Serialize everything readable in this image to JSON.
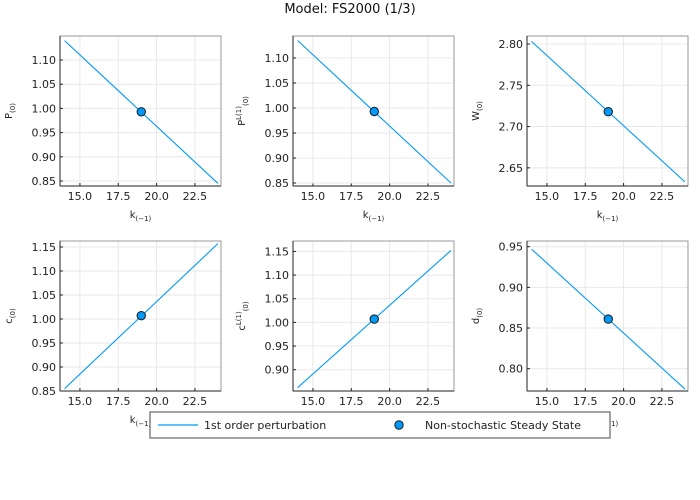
{
  "title": "Model: FS2000  (1/3)",
  "colors": {
    "line": "#009AFA",
    "point_fill": "#009AFA",
    "point_stroke": "#1a1a1a"
  },
  "legend": {
    "placement": "bottom",
    "entries": [
      "1st order perturbation",
      "Non-stochastic Steady State"
    ]
  },
  "chart_data": [
    {
      "type": "line",
      "ylabel": "P₍₀₎",
      "ylabel_html": "P<tspan font-size='7' dy='3'>(0)</tspan>",
      "xlabel": "k₍₋₁₎",
      "xlim": [
        13.7,
        24.2
      ],
      "xticks": [
        15.0,
        17.5,
        20.0,
        22.5
      ],
      "ylim": [
        0.8397,
        1.1496
      ],
      "yticks": [
        0.85,
        0.9,
        0.95,
        1.0,
        1.05,
        1.1
      ],
      "line": {
        "x": [
          14,
          24
        ],
        "y": [
          1.14,
          0.845
        ]
      },
      "steady_state": {
        "x": 19,
        "y": 0.993
      },
      "grid": true
    },
    {
      "type": "line",
      "ylabel": "Pᴸ⁽¹⁾₍₀₎",
      "ylabel_html": "P<tspan font-size='7' dy='-4'>L(1)</tspan><tspan font-size='7' dy='7'>(0)</tspan>",
      "xlabel": "k₍₋₁₎",
      "xlim": [
        13.7,
        24.2
      ],
      "xticks": [
        15.0,
        17.5,
        20.0,
        22.5
      ],
      "ylim": [
        0.844,
        1.144
      ],
      "yticks": [
        0.85,
        0.9,
        0.95,
        1.0,
        1.05,
        1.1
      ],
      "line": {
        "x": [
          14,
          24
        ],
        "y": [
          1.135,
          0.85
        ]
      },
      "steady_state": {
        "x": 19,
        "y": 0.993
      },
      "grid": true
    },
    {
      "type": "line",
      "ylabel": "W₍₀₎",
      "ylabel_html": "W<tspan font-size='7' dy='3'>(0)</tspan>",
      "xlabel": "k₍₋₁₎",
      "xlim": [
        13.7,
        24.2
      ],
      "xticks": [
        15.0,
        17.5,
        20.0,
        22.5
      ],
      "ylim": [
        2.628,
        2.8097
      ],
      "yticks": [
        2.65,
        2.7,
        2.75,
        2.8
      ],
      "line": {
        "x": [
          14,
          24
        ],
        "y": [
          2.803,
          2.633
        ]
      },
      "steady_state": {
        "x": 19,
        "y": 2.718
      },
      "grid": true
    },
    {
      "type": "line",
      "ylabel": "c₍₀₎",
      "ylabel_html": "c<tspan font-size='7' dy='3'>(0)</tspan>",
      "xlabel": "k₍₋₁₎",
      "xlim": [
        13.7,
        24.2
      ],
      "xticks": [
        15.0,
        17.5,
        20.0,
        22.5
      ],
      "ylim": [
        0.85,
        1.1625
      ],
      "yticks": [
        0.85,
        0.9,
        0.95,
        1.0,
        1.05,
        1.1,
        1.15
      ],
      "line": {
        "x": [
          14,
          24
        ],
        "y": [
          0.855,
          1.157
        ]
      },
      "steady_state": {
        "x": 19,
        "y": 1.007
      },
      "grid": true
    },
    {
      "type": "line",
      "ylabel": "cᴸ⁽¹⁾₍₀₎",
      "ylabel_html": "c<tspan font-size='7' dy='-4'>L(1)</tspan><tspan font-size='7' dy='7'>(0)</tspan>",
      "xlabel": "k₍₋₁₎",
      "xlim": [
        13.7,
        24.2
      ],
      "xticks": [
        15.0,
        17.5,
        20.0,
        22.5
      ],
      "ylim": [
        0.855,
        1.172
      ],
      "yticks": [
        0.9,
        0.95,
        1.0,
        1.05,
        1.1,
        1.15
      ],
      "line": {
        "x": [
          14,
          24
        ],
        "y": [
          0.862,
          1.152
        ]
      },
      "steady_state": {
        "x": 19,
        "y": 1.007
      },
      "grid": true
    },
    {
      "type": "line",
      "ylabel": "d₍₀₎",
      "ylabel_html": "d<tspan font-size='7' dy='3'>(0)</tspan>",
      "xlabel": "k₍₋₁₎",
      "xlim": [
        13.7,
        24.2
      ],
      "xticks": [
        15.0,
        17.5,
        20.0,
        22.5
      ],
      "ylim": [
        0.7726,
        0.957
      ],
      "yticks": [
        0.8,
        0.85,
        0.9,
        0.95
      ],
      "line": {
        "x": [
          14,
          24
        ],
        "y": [
          0.947,
          0.775
        ]
      },
      "steady_state": {
        "x": 19,
        "y": 0.861
      },
      "grid": true
    }
  ]
}
